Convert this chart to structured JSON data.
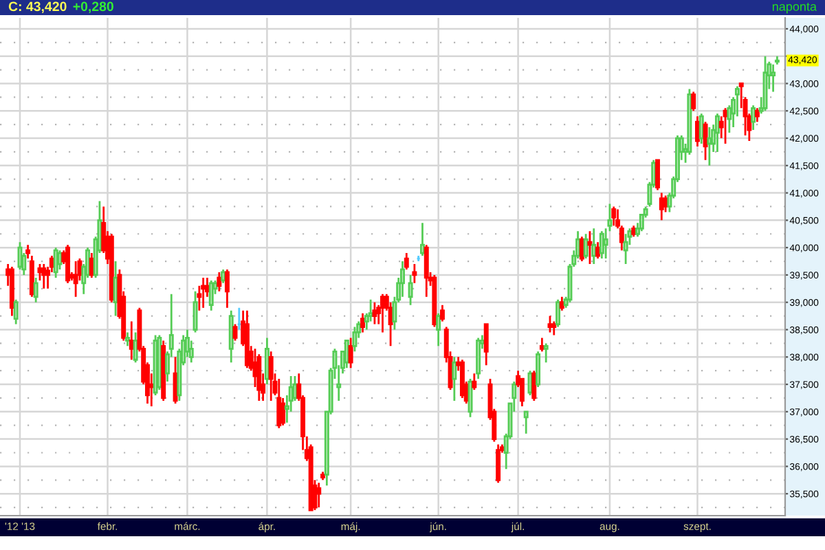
{
  "chart_data": {
    "type": "candlestick",
    "title": "C: 43,420",
    "subtitle": "+0,280",
    "categories": [
      null,
      null,
      null,
      "'12 '13",
      null,
      null,
      null,
      null,
      null,
      null,
      null,
      null,
      null,
      null,
      null,
      null,
      null,
      null,
      null,
      null,
      null,
      null,
      null,
      null,
      null,
      "febr.",
      null,
      null,
      null,
      null,
      null,
      null,
      null,
      null,
      null,
      null,
      null,
      null,
      null,
      null,
      null,
      null,
      null,
      null,
      null,
      "márc.",
      null,
      null,
      null,
      null,
      null,
      null,
      null,
      null,
      null,
      null,
      null,
      null,
      null,
      null,
      null,
      null,
      null,
      null,
      null,
      "ápr.",
      null,
      null,
      null,
      null,
      null,
      null,
      null,
      null,
      null,
      null,
      null,
      null,
      null,
      null,
      null,
      null,
      null,
      null,
      null,
      null,
      "máj.",
      null,
      null,
      null,
      null,
      null,
      null,
      null,
      null,
      null,
      null,
      null,
      null,
      null,
      null,
      null,
      null,
      null,
      null,
      null,
      null,
      null,
      "jún.",
      null,
      null,
      null,
      null,
      null,
      null,
      null,
      null,
      null,
      null,
      null,
      null,
      null,
      null,
      null,
      null,
      null,
      null,
      null,
      "júl.",
      null,
      null,
      null,
      null,
      null,
      null,
      null,
      null,
      null,
      null,
      null,
      null,
      null,
      null,
      null,
      null,
      null,
      null,
      null,
      null,
      null,
      null,
      "aug.",
      null,
      null,
      null,
      null,
      null,
      null,
      null,
      null,
      null,
      null,
      null,
      null,
      null,
      null,
      null,
      null,
      null,
      null,
      null,
      null,
      null,
      "szept.",
      null,
      null,
      null,
      null,
      null,
      null,
      null,
      null,
      null,
      null,
      null,
      null,
      null,
      null,
      null,
      null,
      null,
      null,
      null,
      null
    ],
    "ohlc": [
      [
        39600,
        39700,
        39300,
        39500
      ],
      [
        39600,
        39650,
        38750,
        38900
      ],
      [
        38700,
        39050,
        38600,
        39000
      ],
      [
        39650,
        40100,
        39600,
        40000
      ],
      [
        39600,
        39900,
        39500,
        39850
      ],
      [
        39950,
        40050,
        39800,
        39900
      ],
      [
        39750,
        39850,
        39100,
        39150
      ],
      [
        39100,
        39450,
        39000,
        39350
      ],
      [
        39620,
        39700,
        39400,
        39550
      ],
      [
        39620,
        39700,
        39250,
        39500
      ],
      [
        39580,
        39650,
        39250,
        39500
      ],
      [
        39800,
        39850,
        39550,
        39650
      ],
      [
        39550,
        40000,
        39450,
        39950
      ],
      [
        39700,
        39950,
        39600,
        39900
      ],
      [
        39900,
        39950,
        39700,
        39750
      ],
      [
        40000,
        40050,
        39350,
        39400
      ],
      [
        39500,
        39550,
        39400,
        39450
      ],
      [
        39500,
        39750,
        39100,
        39350
      ],
      [
        39750,
        39800,
        39400,
        39500
      ],
      [
        39350,
        39700,
        39150,
        39650
      ],
      [
        39500,
        40000,
        39450,
        39950
      ],
      [
        39800,
        39900,
        39450,
        39500
      ],
      [
        39500,
        40200,
        39450,
        40150
      ],
      [
        39950,
        40850,
        39900,
        40500
      ],
      [
        40450,
        40750,
        39900,
        39950
      ],
      [
        40200,
        40300,
        39700,
        39800
      ],
      [
        40200,
        40250,
        39000,
        39050
      ],
      [
        39000,
        39750,
        38750,
        39450
      ],
      [
        39500,
        39600,
        38700,
        38750
      ],
      [
        39100,
        39200,
        38300,
        38350
      ],
      [
        38300,
        38450,
        38200,
        38350
      ],
      [
        38300,
        38650,
        37950,
        38150
      ],
      [
        37950,
        38450,
        37900,
        38300
      ],
      [
        38850,
        38900,
        38100,
        38150
      ],
      [
        38150,
        38200,
        37500,
        37550
      ],
      [
        37850,
        37900,
        37150,
        37300
      ],
      [
        37500,
        37700,
        37100,
        37450
      ],
      [
        37350,
        38400,
        37300,
        38300
      ],
      [
        37450,
        38400,
        37400,
        38350
      ],
      [
        38200,
        38300,
        37200,
        37250
      ],
      [
        37700,
        38100,
        37550,
        38050
      ],
      [
        38150,
        39150,
        38000,
        38400
      ],
      [
        37700,
        38000,
        37150,
        37200
      ],
      [
        37300,
        38150,
        37200,
        38100
      ],
      [
        37900,
        38400,
        37850,
        38300
      ],
      [
        38100,
        38500,
        38000,
        38350
      ],
      [
        38000,
        38300,
        37900,
        38150
      ],
      [
        38500,
        39200,
        38450,
        39000
      ],
      [
        39150,
        39300,
        38850,
        39100
      ],
      [
        39300,
        39450,
        38900,
        39250
      ],
      [
        39300,
        39450,
        39100,
        39200
      ],
      [
        38950,
        39400,
        38850,
        39350
      ],
      [
        39250,
        39400,
        39150,
        39350
      ],
      [
        39450,
        39550,
        39200,
        39300
      ],
      [
        39400,
        39600,
        39350,
        39550
      ],
      [
        39550,
        39600,
        38900,
        39200
      ],
      [
        38150,
        38850,
        37900,
        38750
      ],
      [
        38550,
        38600,
        38300,
        38350
      ],
      [
        38600,
        38900,
        38500,
        38600
      ],
      [
        38650,
        38850,
        38200,
        38250
      ],
      [
        38600,
        38850,
        37800,
        37850
      ],
      [
        38100,
        38200,
        37750,
        37800
      ],
      [
        37900,
        38150,
        37450,
        37650
      ],
      [
        38000,
        38050,
        37200,
        37400
      ],
      [
        37500,
        37700,
        37200,
        37350
      ],
      [
        37600,
        38350,
        37500,
        38150
      ],
      [
        38000,
        38100,
        37200,
        37600
      ],
      [
        37550,
        37700,
        37300,
        37350
      ],
      [
        37250,
        37600,
        36700,
        36750
      ],
      [
        37150,
        37250,
        36750,
        36800
      ],
      [
        37050,
        37300,
        36800,
        37100
      ],
      [
        37200,
        37650,
        37000,
        37450
      ],
      [
        37250,
        37650,
        37200,
        37500
      ],
      [
        37500,
        37700,
        37200,
        37250
      ],
      [
        37250,
        37300,
        36300,
        36550
      ],
      [
        36300,
        36550,
        36100,
        36150
      ],
      [
        36350,
        36400,
        35200,
        35200
      ],
      [
        35650,
        35750,
        35200,
        35250
      ],
      [
        35600,
        35700,
        35250,
        35500
      ],
      [
        35850,
        35900,
        35750,
        35800
      ],
      [
        35850,
        37000,
        35650,
        37000
      ],
      [
        37000,
        37800,
        36950,
        37750
      ],
      [
        37800,
        38150,
        37600,
        38100
      ],
      [
        37450,
        37850,
        37200,
        37500
      ],
      [
        37800,
        38100,
        37700,
        38100
      ],
      [
        37900,
        38300,
        37800,
        38300
      ],
      [
        38200,
        38350,
        37800,
        37900
      ],
      [
        38200,
        38550,
        38100,
        38450
      ],
      [
        38450,
        38650,
        38350,
        38600
      ],
      [
        38700,
        38800,
        38450,
        38550
      ],
      [
        38650,
        38800,
        38500,
        38750
      ],
      [
        38750,
        39050,
        38650,
        38800
      ],
      [
        38850,
        39000,
        38600,
        38750
      ],
      [
        38900,
        38950,
        38600,
        38800
      ],
      [
        39100,
        39150,
        38450,
        38900
      ],
      [
        39100,
        39150,
        38850,
        38900
      ],
      [
        38900,
        39000,
        38200,
        38600
      ],
      [
        38650,
        39100,
        38500,
        39000
      ],
      [
        39050,
        39450,
        39000,
        39350
      ],
      [
        39350,
        39750,
        39100,
        39600
      ],
      [
        39800,
        39900,
        39600,
        39650
      ],
      [
        39100,
        39500,
        38950,
        39350
      ],
      [
        39550,
        39700,
        39350,
        39500
      ],
      [
        39800,
        39850,
        39750,
        39800
      ],
      [
        39900,
        40450,
        39850,
        40050
      ],
      [
        40000,
        40050,
        39100,
        39450
      ],
      [
        39450,
        39550,
        39300,
        39400
      ],
      [
        39450,
        39500,
        38550,
        38600
      ],
      [
        38500,
        38800,
        38200,
        38750
      ],
      [
        38850,
        38950,
        38650,
        38700
      ],
      [
        38500,
        38550,
        37900,
        38000
      ],
      [
        38000,
        38100,
        37400,
        37450
      ],
      [
        37600,
        38000,
        37200,
        37900
      ],
      [
        37900,
        38000,
        37750,
        37850
      ],
      [
        37900,
        37950,
        37250,
        37300
      ],
      [
        37500,
        37550,
        37150,
        37200
      ],
      [
        37000,
        37600,
        36900,
        37550
      ],
      [
        37550,
        37700,
        37400,
        37450
      ],
      [
        37700,
        38350,
        37600,
        38300
      ],
      [
        38250,
        38400,
        38150,
        38300
      ],
      [
        38600,
        38600,
        37850,
        38100
      ],
      [
        37500,
        37600,
        36850,
        36900
      ],
      [
        37000,
        37050,
        36450,
        36500
      ],
      [
        36300,
        36400,
        35700,
        35750
      ],
      [
        36350,
        36400,
        36250,
        36300
      ],
      [
        36250,
        36600,
        35950,
        36550
      ],
      [
        36550,
        37150,
        36500,
        37150
      ],
      [
        37250,
        37550,
        37000,
        37500
      ],
      [
        37650,
        37750,
        37450,
        37500
      ],
      [
        37600,
        37600,
        37100,
        37200
      ],
      [
        36900,
        37000,
        36600,
        37000
      ],
      [
        37350,
        37750,
        37300,
        37700
      ],
      [
        37700,
        37750,
        37200,
        37250
      ],
      [
        37500,
        38100,
        37450,
        38050
      ],
      [
        38200,
        38350,
        38100,
        38150
      ],
      [
        38150,
        38250,
        37900,
        38200
      ],
      [
        38600,
        38750,
        38450,
        38550
      ],
      [
        38600,
        38650,
        38400,
        38550
      ],
      [
        38600,
        39050,
        38550,
        39000
      ],
      [
        39000,
        39100,
        38850,
        38900
      ],
      [
        38950,
        39100,
        38900,
        39050
      ],
      [
        39050,
        39700,
        39000,
        39650
      ],
      [
        39700,
        39950,
        39650,
        39850
      ],
      [
        39850,
        40300,
        39800,
        40150
      ],
      [
        40150,
        40200,
        39750,
        39800
      ],
      [
        39850,
        40250,
        39800,
        40150
      ],
      [
        40100,
        40300,
        39700,
        40050
      ],
      [
        39850,
        40350,
        39700,
        40050
      ],
      [
        40000,
        40100,
        39800,
        39850
      ],
      [
        39900,
        40300,
        39800,
        40250
      ],
      [
        40050,
        40350,
        39800,
        40150
      ],
      [
        40400,
        40800,
        40300,
        40500
      ],
      [
        40700,
        40750,
        40400,
        40550
      ],
      [
        40500,
        40700,
        40350,
        40400
      ],
      [
        40350,
        40400,
        39950,
        40100
      ],
      [
        39950,
        40250,
        39700,
        40100
      ],
      [
        40200,
        40350,
        40050,
        40300
      ],
      [
        40350,
        40400,
        40200,
        40250
      ],
      [
        40250,
        40450,
        40200,
        40350
      ],
      [
        40350,
        40600,
        40300,
        40600
      ],
      [
        40600,
        40750,
        40550,
        40700
      ],
      [
        40800,
        41200,
        40750,
        41150
      ],
      [
        41150,
        41600,
        41100,
        41550
      ],
      [
        41600,
        41600,
        41050,
        41100
      ],
      [
        40900,
        41000,
        40500,
        40700
      ],
      [
        40900,
        40950,
        40650,
        40750
      ],
      [
        40750,
        41000,
        40650,
        40950
      ],
      [
        40950,
        41300,
        40900,
        41250
      ],
      [
        41250,
        42050,
        41200,
        42000
      ],
      [
        41750,
        42050,
        41600,
        42000
      ],
      [
        41750,
        41900,
        41550,
        41800
      ],
      [
        41750,
        42900,
        41700,
        42800
      ],
      [
        42800,
        42850,
        42500,
        42550
      ],
      [
        42300,
        42400,
        41850,
        41950
      ],
      [
        42000,
        42450,
        41900,
        42400
      ],
      [
        42250,
        42300,
        41600,
        41850
      ],
      [
        41900,
        42200,
        41500,
        42000
      ],
      [
        41900,
        42250,
        41750,
        42150
      ],
      [
        42100,
        42450,
        41750,
        42400
      ],
      [
        42300,
        42400,
        42000,
        42200
      ],
      [
        42500,
        42550,
        41900,
        42400
      ],
      [
        42350,
        42600,
        42100,
        42550
      ],
      [
        42450,
        42750,
        42200,
        42700
      ],
      [
        42800,
        42950,
        42400,
        42900
      ],
      [
        43000,
        43000,
        42550,
        42950
      ],
      [
        42700,
        42750,
        42050,
        42400
      ],
      [
        42400,
        42450,
        41950,
        42150
      ],
      [
        42300,
        42600,
        42150,
        42550
      ],
      [
        42500,
        42550,
        42300,
        42400
      ],
      [
        42500,
        42750,
        42450,
        42550
      ],
      [
        42550,
        43500,
        42500,
        43200
      ],
      [
        43150,
        43400,
        42900,
        43350
      ],
      [
        43150,
        43350,
        42850,
        43200
      ],
      [
        43400,
        43500,
        43350,
        43420
      ]
    ],
    "colors": [
      "#ff0000",
      "#ff0000",
      "#55cc55",
      "#55cc55",
      "#55cc55",
      "#ff0000",
      "#ff0000",
      "#55cc55",
      "#ff0000",
      "#ff0000",
      "#ff0000",
      "#ff0000",
      "#55cc55",
      "#55cc55",
      "#ff0000",
      "#ff0000",
      "#ff0000",
      "#ff0000",
      "#ff0000",
      "#55cc55",
      "#55cc55",
      "#ff0000",
      "#55cc55",
      "#55cc55",
      "#ff0000",
      "#ff0000",
      "#ff0000",
      "#55cc55",
      "#ff0000",
      "#ff0000",
      "#55cc55",
      "#ff0000",
      "#55cc55",
      "#ff0000",
      "#ff0000",
      "#ff0000",
      "#ff0000",
      "#55cc55",
      "#55cc55",
      "#ff0000",
      "#55cc55",
      "#55cc55",
      "#ff0000",
      "#55cc55",
      "#55cc55",
      "#55cc55",
      "#55cc55",
      "#55cc55",
      "#ff0000",
      "#ff0000",
      "#ff0000",
      "#55cc55",
      "#55cc55",
      "#ff0000",
      "#55cc55",
      "#ff0000",
      "#55cc55",
      "#ff0000",
      "#55ccff",
      "#ff0000",
      "#ff0000",
      "#ff0000",
      "#ff0000",
      "#ff0000",
      "#ff0000",
      "#55cc55",
      "#ff0000",
      "#ff0000",
      "#ff0000",
      "#ff0000",
      "#55cc55",
      "#55cc55",
      "#55cc55",
      "#ff0000",
      "#ff0000",
      "#ff0000",
      "#ff0000",
      "#ff0000",
      "#ff0000",
      "#ff0000",
      "#55cc55",
      "#55cc55",
      "#55cc55",
      "#55cc55",
      "#55cc55",
      "#55cc55",
      "#ff0000",
      "#55cc55",
      "#55cc55",
      "#ff0000",
      "#55cc55",
      "#55cc55",
      "#ff0000",
      "#ff0000",
      "#ff0000",
      "#ff0000",
      "#ff0000",
      "#55cc55",
      "#55cc55",
      "#55cc55",
      "#ff0000",
      "#55cc55",
      "#ff0000",
      "#55ccff",
      "#55cc55",
      "#ff0000",
      "#ff0000",
      "#ff0000",
      "#55cc55",
      "#ff0000",
      "#ff0000",
      "#ff0000",
      "#55cc55",
      "#ff0000",
      "#ff0000",
      "#ff0000",
      "#55cc55",
      "#ff0000",
      "#55cc55",
      "#55cc55",
      "#ff0000",
      "#ff0000",
      "#ff0000",
      "#ff0000",
      "#ff0000",
      "#55cc55",
      "#55cc55",
      "#55cc55",
      "#ff0000",
      "#ff0000",
      "#55cc55",
      "#55cc55",
      "#ff0000",
      "#55cc55",
      "#ff0000",
      "#55cc55",
      "#ff0000",
      "#ff0000",
      "#55cc55",
      "#ff0000",
      "#55cc55",
      "#55cc55",
      "#55cc55",
      "#55cc55",
      "#ff0000",
      "#55cc55",
      "#ff0000",
      "#55cc55",
      "#ff0000",
      "#55cc55",
      "#55cc55",
      "#55cc55",
      "#ff0000",
      "#ff0000",
      "#ff0000",
      "#55cc55",
      "#55cc55",
      "#ff0000",
      "#55cc55",
      "#55cc55",
      "#55cc55",
      "#55cc55",
      "#55cc55",
      "#ff0000",
      "#ff0000",
      "#ff0000",
      "#55cc55",
      "#55cc55",
      "#55cc55",
      "#55cc55",
      "#55cc55",
      "#55cc55",
      "#ff0000",
      "#ff0000",
      "#55cc55",
      "#ff0000",
      "#55cc55",
      "#55cc55",
      "#55cc55",
      "#ff0000",
      "#ff0000",
      "#55cc55",
      "#55cc55",
      "#55cc55",
      "#ff0000",
      "#ff0000",
      "#ff0000",
      "#55cc55",
      "#ff0000",
      "#55cc55",
      "#55cc55",
      "#55cc55",
      "#55cc55",
      "#55cc55"
    ],
    "ylim": [
      35100,
      44200
    ],
    "yticks": [
      {
        "value": 35500,
        "label": "35,500"
      },
      {
        "value": 36000,
        "label": "36,000"
      },
      {
        "value": 36500,
        "label": "36,500"
      },
      {
        "value": 37000,
        "label": "37,000"
      },
      {
        "value": 37500,
        "label": "37,500"
      },
      {
        "value": 38000,
        "label": "38,000"
      },
      {
        "value": 38500,
        "label": "38,500"
      },
      {
        "value": 39000,
        "label": "39,000"
      },
      {
        "value": 39500,
        "label": "39,500"
      },
      {
        "value": 40000,
        "label": "40,000"
      },
      {
        "value": 40500,
        "label": "40,500"
      },
      {
        "value": 41000,
        "label": "41,000"
      },
      {
        "value": 41500,
        "label": "41,500"
      },
      {
        "value": 42000,
        "label": "42,000"
      },
      {
        "value": 42500,
        "label": "42,500"
      },
      {
        "value": 43000,
        "label": "43,000"
      },
      {
        "value": 43500,
        "label": null
      },
      {
        "value": 44000,
        "label": "44,000"
      }
    ],
    "grid": true,
    "annotations": [
      "naponta",
      {
        "text": "43,420",
        "y": 43420
      }
    ]
  }
}
